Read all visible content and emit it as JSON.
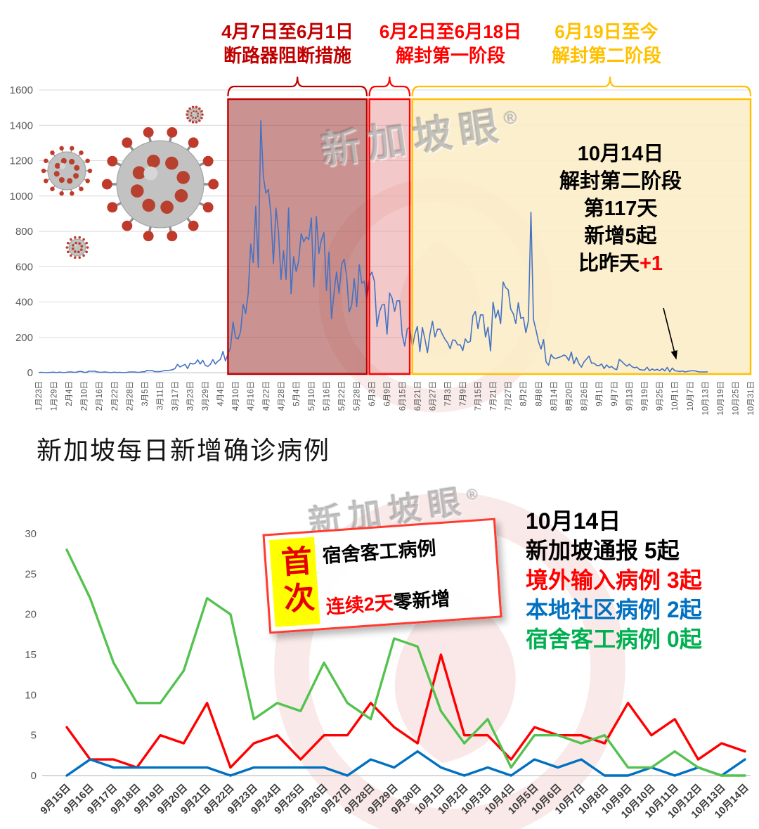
{
  "watermark": {
    "text": "新加坡眼",
    "reg": "®"
  },
  "chart_data": [
    {
      "type": "line",
      "title": "新加坡每日新增确诊病例",
      "ylim": [
        0,
        1600
      ],
      "y_ticks": [
        0,
        200,
        400,
        600,
        800,
        1000,
        1200,
        1400,
        1600
      ],
      "x_tick_interval_days": 6,
      "total_days": 282,
      "x_tick_labels": [
        "1月23日",
        "1月29日",
        "2月4日",
        "2月10日",
        "2月16日",
        "2月22日",
        "2月28日",
        "3月5日",
        "3月11日",
        "3月17日",
        "3月23日",
        "3月29日",
        "4月4日",
        "4月10日",
        "4月16日",
        "4月22日",
        "4月28日",
        "5月4日",
        "5月10日",
        "5月16日",
        "5月22日",
        "5月28日",
        "6月3日",
        "6月9日",
        "6月15日",
        "6月21日",
        "6月27日",
        "7月3日",
        "7月9日",
        "7月15日",
        "7月21日",
        "7月27日",
        "8月2日",
        "8月8日",
        "8月14日",
        "8月20日",
        "8月26日",
        "9月1日",
        "9月7日",
        "9月13日",
        "9月19日",
        "9月25日",
        "10月1日",
        "10月7日",
        "10月13日",
        "10月19日",
        "10月25日",
        "10月31日"
      ],
      "series": [
        {
          "name": "每日新增确诊病例",
          "color": "#4472C4",
          "start_label": "1月23日",
          "end_label": "10月14日",
          "values": [
            1,
            2,
            1,
            0,
            1,
            2,
            3,
            0,
            3,
            2,
            0,
            2,
            4,
            4,
            2,
            3,
            7,
            7,
            2,
            2,
            9,
            8,
            9,
            5,
            3,
            2,
            4,
            3,
            1,
            1,
            3,
            1,
            2,
            1,
            0,
            2,
            4,
            4,
            4,
            2,
            2,
            5,
            5,
            13,
            11,
            12,
            6,
            6,
            6,
            9,
            13,
            12,
            14,
            17,
            23,
            47,
            32,
            40,
            47,
            23,
            54,
            49,
            52,
            73,
            49,
            70,
            42,
            35,
            47,
            74,
            49,
            65,
            75,
            120,
            66,
            106,
            142,
            287,
            198,
            191,
            233,
            386,
            334,
            447,
            728,
            623,
            942,
            596,
            1426,
            1111,
            1016,
            1037,
            897,
            618,
            931,
            799,
            528,
            690,
            528,
            932,
            447,
            657,
            573,
            632,
            788,
            741,
            768,
            753,
            876,
            486,
            884,
            675,
            752,
            793,
            465,
            682,
            305,
            451,
            570,
            448,
            614,
            642,
            548,
            344,
            383,
            533,
            373,
            611,
            506,
            518,
            408,
            544,
            569,
            517,
            261,
            344,
            383,
            386,
            218,
            451,
            422,
            347,
            407,
            407,
            214,
            151,
            247,
            257,
            142,
            217,
            262,
            119,
            256,
            191,
            113,
            219,
            291,
            202,
            246,
            246,
            215,
            188,
            169,
            136,
            185,
            183,
            157,
            158,
            125,
            191,
            170,
            178,
            322,
            347,
            249,
            327,
            327,
            202,
            257,
            123,
            399,
            310,
            354,
            277,
            513,
            481,
            469,
            359,
            334,
            278,
            396,
            307,
            313,
            226,
            295,
            908,
            301,
            242,
            175,
            133,
            188,
            61,
            42,
            102,
            83,
            81,
            86,
            91,
            100,
            93,
            68,
            117,
            50,
            86,
            51,
            31,
            60,
            77,
            94,
            54,
            54,
            41,
            40,
            49,
            23,
            44,
            29,
            35,
            22,
            17,
            75,
            63,
            49,
            37,
            48,
            34,
            28,
            31,
            18,
            15,
            14,
            31,
            11,
            21,
            13,
            19,
            11,
            23,
            10,
            30,
            5,
            26,
            11,
            9,
            6,
            10,
            4,
            7,
            10,
            11,
            10,
            6,
            4,
            4,
            4,
            5
          ]
        }
      ],
      "regions": [
        {
          "label_line1": "4月7日至6月1日",
          "label_line2": "断路器阻断措施",
          "start_day": 75,
          "end_day": 130,
          "fill": "rgba(158,58,54,0.55)",
          "border": "#C00000",
          "text_color": "#C00000"
        },
        {
          "label_line1": "6月2日至6月18日",
          "label_line2": "解封第一阶段",
          "start_day": 131,
          "end_day": 147,
          "fill": "rgba(226,132,132,0.45)",
          "border": "#FF0000",
          "text_color": "#FF0000"
        },
        {
          "label_line1": "6月19日至今",
          "label_line2": "解封第二阶段",
          "start_day": 148,
          "end_day": 282,
          "fill": "rgba(250,237,198,0.88)",
          "border": "#FFC000",
          "text_color": "#FFC000"
        }
      ],
      "annotation": {
        "lines": [
          "10月14日",
          "解封第二阶段",
          "第117天",
          "新增5起"
        ],
        "delta_prefix": "比昨天",
        "delta": "+1",
        "delta_color": "#FF0000"
      }
    },
    {
      "type": "line",
      "ylim": [
        0,
        30
      ],
      "y_ticks": [
        0,
        5,
        10,
        15,
        20,
        25,
        30
      ],
      "categories": [
        "9月15日",
        "9月16日",
        "9月17日",
        "9月18日",
        "9月19日",
        "9月20日",
        "9月21日",
        "8月22日",
        "9月23日",
        "9月24日",
        "9月25日",
        "9月26日",
        "9月27日",
        "9月28日",
        "9月29日",
        "9月30日",
        "10月1日",
        "10月2日",
        "10月3日",
        "10月4日",
        "10月5日",
        "10月6日",
        "10月7日",
        "10月8日",
        "10月9日",
        "10月10日",
        "10月11日",
        "10月12日",
        "10月13日",
        "10月14日"
      ],
      "series": [
        {
          "name": "境外输入病例",
          "color": "#FF0000",
          "values": [
            6,
            2,
            2,
            1,
            5,
            4,
            9,
            1,
            4,
            5,
            2,
            5,
            5,
            9,
            6,
            4,
            15,
            5,
            5,
            2,
            6,
            5,
            5,
            4,
            9,
            5,
            7,
            2,
            4,
            3
          ]
        },
        {
          "name": "本地社区病例",
          "color": "#0070C0",
          "values": [
            0,
            2,
            1,
            1,
            1,
            1,
            1,
            0,
            1,
            1,
            1,
            1,
            0,
            2,
            1,
            3,
            1,
            0,
            1,
            0,
            2,
            1,
            2,
            0,
            0,
            1,
            0,
            1,
            0,
            2
          ]
        },
        {
          "name": "宿舍客工病例",
          "color": "#54C24E",
          "values": [
            28,
            22,
            14,
            9,
            9,
            13,
            22,
            20,
            7,
            9,
            8,
            14,
            9,
            7,
            17,
            16,
            8,
            4,
            7,
            1,
            5,
            5,
            4,
            5,
            1,
            1,
            3,
            1,
            0,
            0
          ]
        }
      ],
      "legend": {
        "date": "10月14日",
        "total": "新加坡通报 5起",
        "imported": "境外输入病例 3起",
        "community": "本地社区病例 2起",
        "dorm": "宿舍客工病例 0起",
        "imported_color": "#FF0000",
        "community_color": "#0070C0",
        "dorm_color": "#00B050"
      },
      "callout": {
        "badge": "首次",
        "line1": "宿舍客工病例",
        "line2_red": "连续2天",
        "line2_black": "零新增"
      }
    }
  ]
}
